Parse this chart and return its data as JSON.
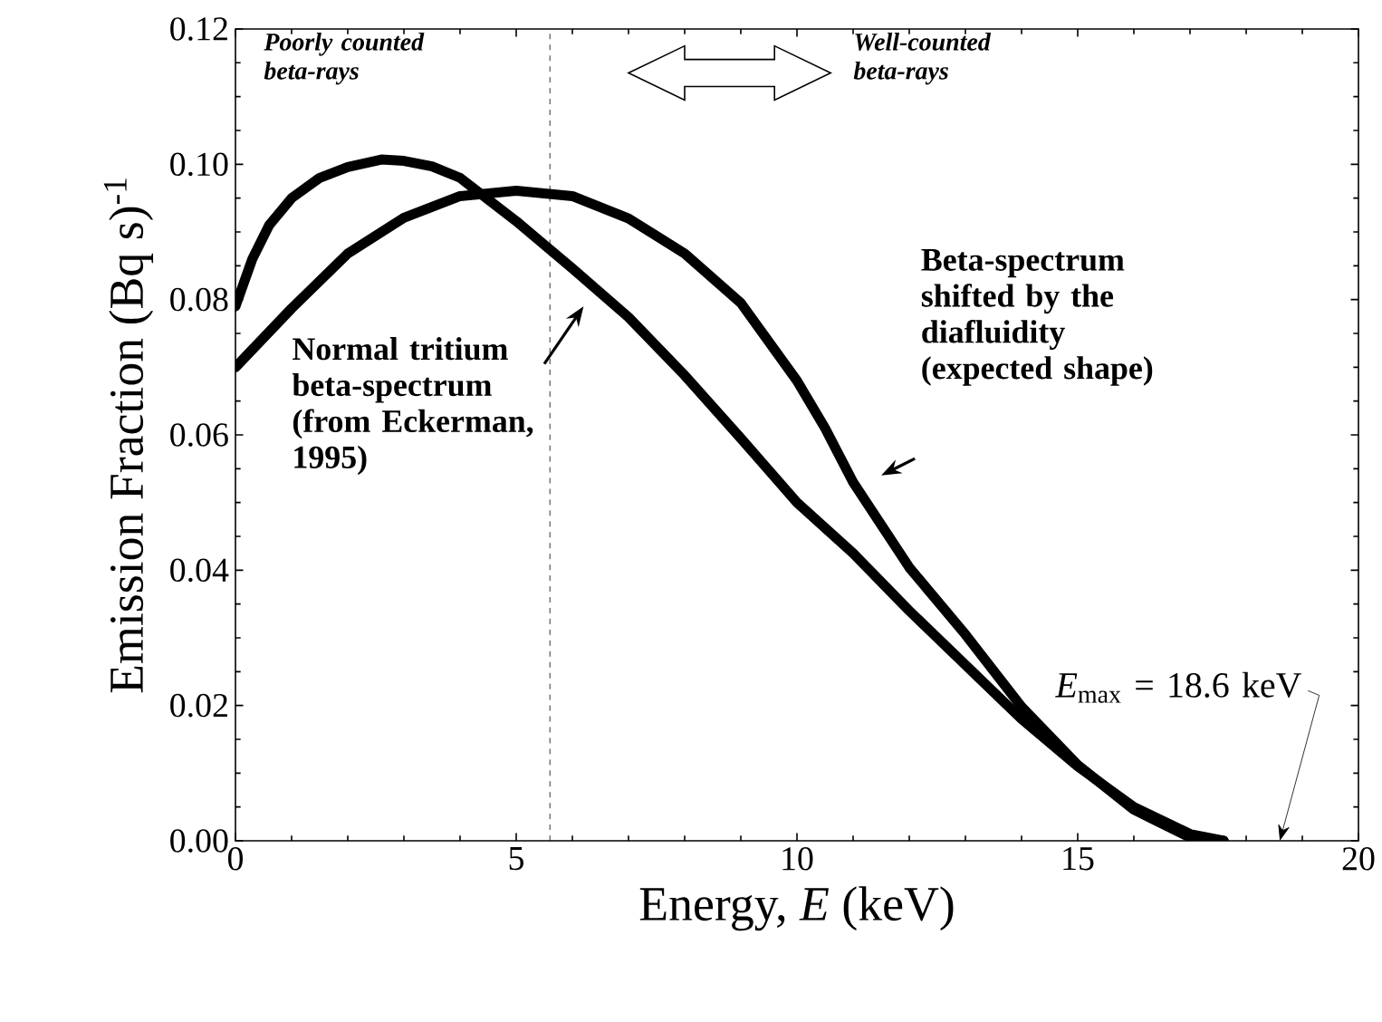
{
  "chart_data": {
    "type": "line",
    "xlabel": "Energy, *E* (keV)",
    "ylabel": "Emission Fraction (Bq s)$^{-1}$",
    "xlim": [
      0,
      20
    ],
    "ylim": [
      0,
      0.12
    ],
    "xticks": [
      0,
      5,
      10,
      15,
      20
    ],
    "yticks": [
      {
        "value": 0,
        "label": "0.00"
      },
      {
        "value": 0.02,
        "label": "0.02"
      },
      {
        "value": 0.04,
        "label": "0.04"
      },
      {
        "value": 0.06,
        "label": "0.06"
      },
      {
        "value": 0.08,
        "label": "0.08"
      },
      {
        "value": 0.1,
        "label": "0.10"
      },
      {
        "value": 0.12,
        "label": "0.12"
      }
    ],
    "grid": false,
    "marker": "none",
    "line_style": "solid",
    "series": [
      {
        "color": "#000000",
        "x": [
          0,
          0.3,
          0.6,
          1,
          1.5,
          2,
          2.6,
          3,
          3.5,
          4,
          5,
          6,
          7,
          8,
          9,
          10,
          11,
          12,
          13,
          14,
          15,
          16,
          17,
          17.6
        ],
        "values": [
          0.079,
          0.086,
          0.091,
          0.095,
          0.098,
          0.0996,
          0.1007,
          0.1005,
          0.0997,
          0.098,
          0.0916,
          0.0846,
          0.0774,
          0.0688,
          0.0595,
          0.05,
          0.0425,
          0.034,
          0.026,
          0.018,
          0.011,
          0.005,
          0.001,
          0
        ]
      },
      {
        "color": "#000000",
        "x": [
          0,
          1,
          2,
          3,
          4,
          5,
          6,
          7,
          8,
          9,
          10,
          10.5,
          11,
          12,
          13,
          14,
          15,
          16,
          17,
          17.6
        ],
        "values": [
          0.07,
          0.0787,
          0.0868,
          0.0921,
          0.0953,
          0.0961,
          0.0953,
          0.092,
          0.0868,
          0.0795,
          0.068,
          0.061,
          0.053,
          0.0404,
          0.0305,
          0.0198,
          0.0112,
          0.0046,
          0.0005,
          0
        ]
      }
    ],
    "ref_lines": [
      {
        "axis": "x",
        "value": 5.6,
        "line_style": "dashed",
        "color": "#000000"
      }
    ],
    "annotations": [
      "*Poorly counted beta-rays*",
      "*Well-counted beta-rays*",
      "Normal tritium beta-spectrum (from Eckerman, 1995)",
      "Beta-spectrum shifted by the diafluidity (expected shape)",
      "*E*$_{max}$ = 18.6 keV"
    ]
  }
}
